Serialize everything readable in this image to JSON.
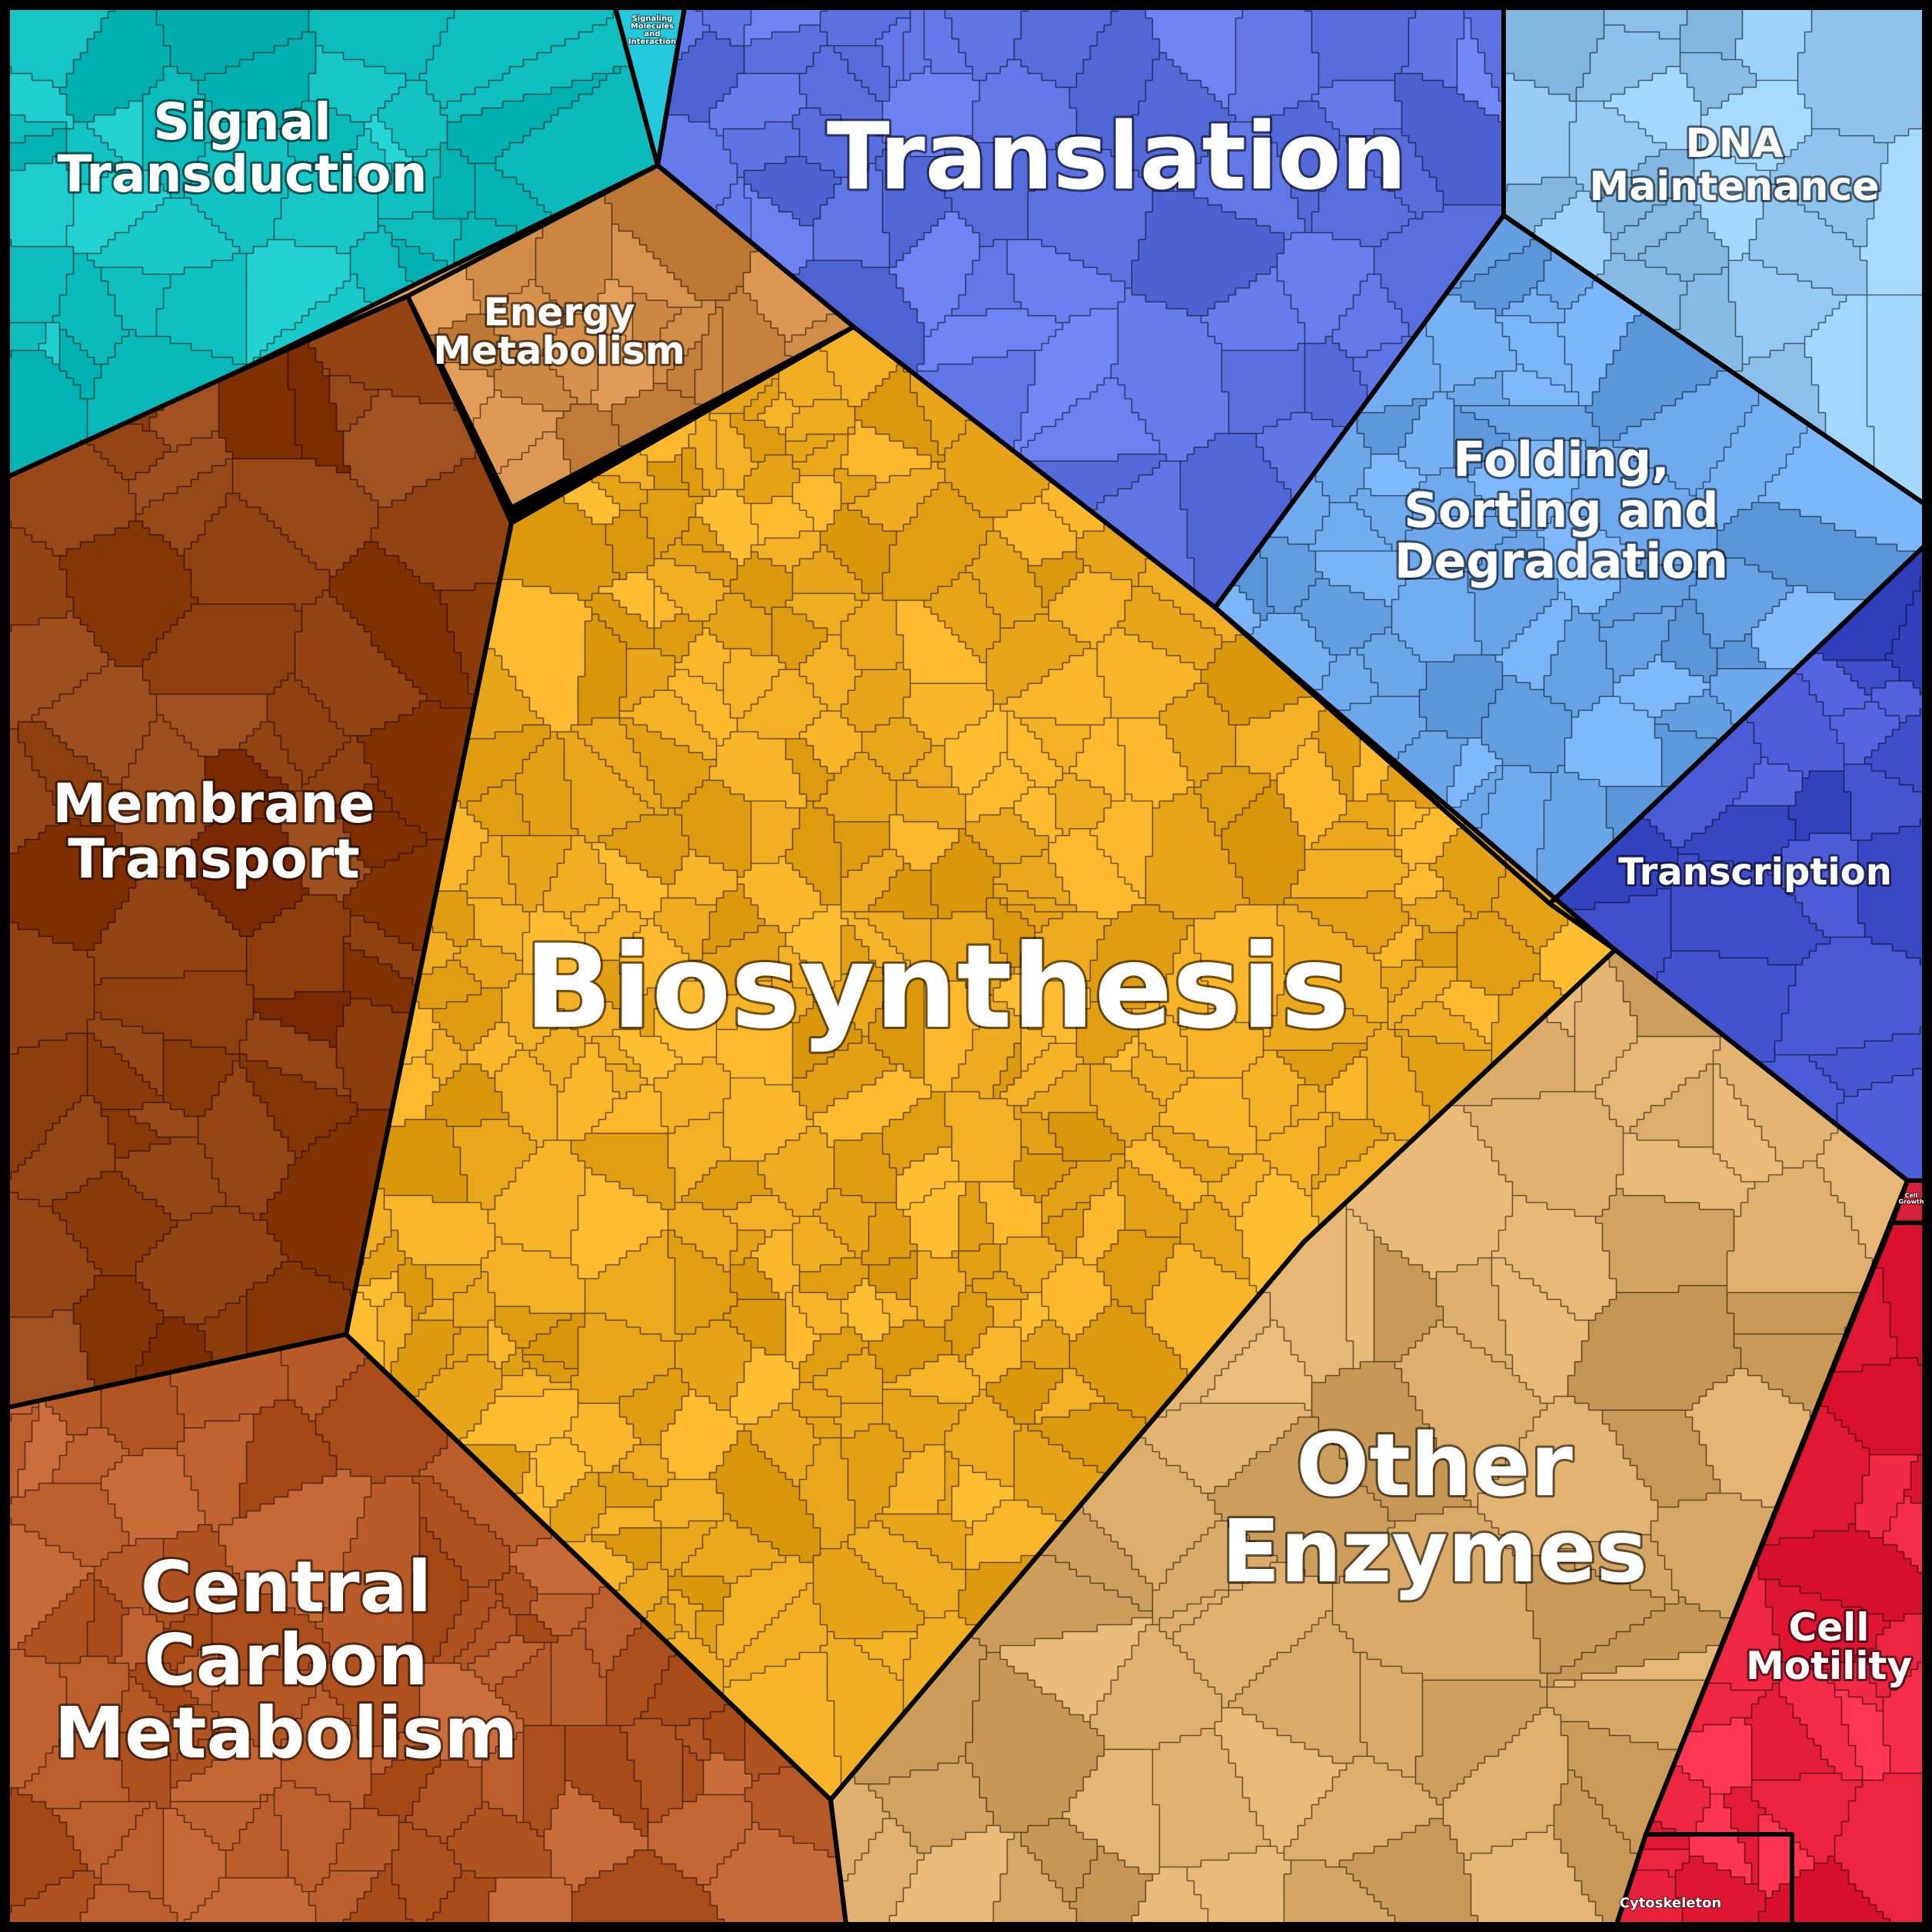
{
  "diagram": {
    "type": "voronoi-treemap",
    "categories": [
      {
        "id": "signal",
        "label": "Signal\nTransduction",
        "color": "#12c3c3"
      },
      {
        "id": "signaling-molecules",
        "label": "Signaling\nMolecules\nand\nInteraction",
        "color": "#22c6d8"
      },
      {
        "id": "translation",
        "label": "Translation",
        "color": "#5f74e6"
      },
      {
        "id": "dna",
        "label": "DNA\nMaintenance",
        "color": "#8ec3f0"
      },
      {
        "id": "energy",
        "label": "Energy\nMetabolism",
        "color": "#cf8a45"
      },
      {
        "id": "folding",
        "label": "Folding,\nSorting and\nDegradation",
        "color": "#6aa6ec"
      },
      {
        "id": "membrane",
        "label": "Membrane\nTransport",
        "color": "#923f0e"
      },
      {
        "id": "biosynthesis",
        "label": "Biosynthesis",
        "color": "#f0b020"
      },
      {
        "id": "transcription",
        "label": "Transcription",
        "color": "#3f4fcf"
      },
      {
        "id": "other-enzymes",
        "label": "Other\nEnzymes",
        "color": "#d8a866"
      },
      {
        "id": "cell-growth",
        "label": "Cell\nGrowth",
        "color": "#d61f3a"
      },
      {
        "id": "cell-motility",
        "label": "Cell\nMotility",
        "color": "#ee2440"
      },
      {
        "id": "cytoskeleton",
        "label": "Cytoskeleton",
        "color": "#c8102e"
      },
      {
        "id": "central-carbon",
        "label": "Central\nCarbon\nMetabolism",
        "color": "#b85a28"
      }
    ]
  }
}
